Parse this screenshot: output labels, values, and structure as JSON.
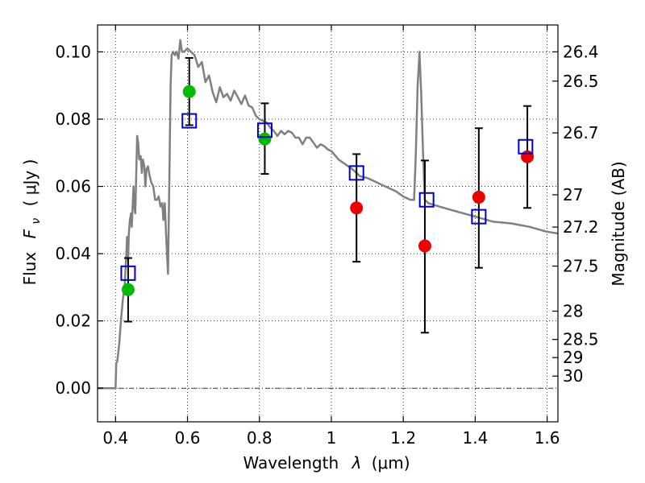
{
  "chart_data": {
    "type": "scatter",
    "title": "",
    "xlabel_text": "Wavelength",
    "xlabel_symbol": "λ",
    "xlabel_unit": "(μm)",
    "ylabel_text": "Flux",
    "ylabel_symbol": "F",
    "ylabel_subscript": "ν",
    "ylabel_unit": "( μJy )",
    "y2label": "Magnitude (AB)",
    "xlim": [
      0.35,
      1.63
    ],
    "ylim": [
      -0.01,
      0.108
    ],
    "grid": true,
    "x_ticks": [
      0.4,
      0.6,
      0.8,
      1.0,
      1.2,
      1.4,
      1.6
    ],
    "x_tick_labels": [
      "0.4",
      "0.6",
      "0.8",
      "1",
      "1.2",
      "1.4",
      "1.6"
    ],
    "y_ticks": [
      0.0,
      0.02,
      0.04,
      0.06,
      0.08,
      0.1
    ],
    "y_tick_labels": [
      "0.00",
      "0.02",
      "0.04",
      "0.06",
      "0.08",
      "0.10"
    ],
    "y2_ticks": [
      {
        "label": "26.4",
        "flux": 0.1
      },
      {
        "label": "26.5",
        "flux": 0.0913
      },
      {
        "label": "26.7",
        "flux": 0.0759
      },
      {
        "label": "27",
        "flux": 0.0575
      },
      {
        "label": "27.2",
        "flux": 0.0479
      },
      {
        "label": "27.5",
        "flux": 0.0363
      },
      {
        "label": "28",
        "flux": 0.0229
      },
      {
        "label": "28.5",
        "flux": 0.0145
      },
      {
        "label": "29",
        "flux": 0.0091
      },
      {
        "label": "30",
        "flux": 0.0036
      }
    ],
    "series": [
      {
        "name": "model_spectrum",
        "kind": "line",
        "color": "#808080",
        "x": [
          0.35,
          0.4,
          0.402,
          0.405,
          0.41,
          0.415,
          0.42,
          0.425,
          0.43,
          0.432,
          0.435,
          0.437,
          0.44,
          0.443,
          0.445,
          0.448,
          0.45,
          0.452,
          0.455,
          0.458,
          0.46,
          0.463,
          0.466,
          0.47,
          0.473,
          0.476,
          0.48,
          0.483,
          0.486,
          0.49,
          0.495,
          0.5,
          0.505,
          0.51,
          0.515,
          0.52,
          0.525,
          0.53,
          0.533,
          0.537,
          0.54,
          0.543,
          0.546,
          0.55,
          0.553,
          0.556,
          0.56,
          0.565,
          0.57,
          0.575,
          0.58,
          0.585,
          0.59,
          0.6,
          0.61,
          0.62,
          0.63,
          0.64,
          0.65,
          0.66,
          0.67,
          0.68,
          0.69,
          0.7,
          0.71,
          0.72,
          0.73,
          0.74,
          0.75,
          0.76,
          0.77,
          0.78,
          0.79,
          0.8,
          0.81,
          0.82,
          0.83,
          0.84,
          0.85,
          0.86,
          0.87,
          0.88,
          0.89,
          0.9,
          0.91,
          0.92,
          0.93,
          0.94,
          0.95,
          0.96,
          0.97,
          0.98,
          0.99,
          1.0,
          1.02,
          1.04,
          1.06,
          1.08,
          1.1,
          1.12,
          1.14,
          1.16,
          1.18,
          1.2,
          1.22,
          1.23,
          1.235,
          1.24,
          1.245,
          1.25,
          1.255,
          1.26,
          1.27,
          1.3,
          1.35,
          1.4,
          1.45,
          1.5,
          1.55,
          1.6,
          1.63
        ],
        "values": [
          0.0,
          0.0,
          0.0075,
          0.008,
          0.013,
          0.02,
          0.026,
          0.03,
          0.04,
          0.045,
          0.038,
          0.046,
          0.05,
          0.052,
          0.048,
          0.055,
          0.06,
          0.054,
          0.052,
          0.066,
          0.075,
          0.073,
          0.068,
          0.069,
          0.064,
          0.068,
          0.066,
          0.06,
          0.065,
          0.066,
          0.063,
          0.061,
          0.06,
          0.056,
          0.056,
          0.057,
          0.054,
          0.055,
          0.05,
          0.055,
          0.047,
          0.04,
          0.034,
          0.065,
          0.09,
          0.099,
          0.1,
          0.099,
          0.1,
          0.098,
          0.1035,
          0.1,
          0.1,
          0.101,
          0.1,
          0.099,
          0.0955,
          0.097,
          0.091,
          0.093,
          0.088,
          0.085,
          0.0895,
          0.0865,
          0.0875,
          0.0855,
          0.0885,
          0.0865,
          0.0845,
          0.087,
          0.084,
          0.0835,
          0.081,
          0.08,
          0.0795,
          0.079,
          0.0775,
          0.0765,
          0.075,
          0.0765,
          0.0755,
          0.0765,
          0.076,
          0.0745,
          0.0745,
          0.0725,
          0.0745,
          0.0745,
          0.073,
          0.0715,
          0.0725,
          0.072,
          0.071,
          0.0705,
          0.068,
          0.0665,
          0.065,
          0.063,
          0.0625,
          0.0615,
          0.0605,
          0.0595,
          0.0585,
          0.057,
          0.056,
          0.056,
          0.07,
          0.09,
          0.1,
          0.087,
          0.07,
          0.056,
          0.055,
          0.054,
          0.0525,
          0.051,
          0.0495,
          0.049,
          0.048,
          0.0465,
          0.046
        ]
      },
      {
        "name": "observed_green",
        "kind": "points",
        "color": "#00bb00",
        "x": [
          0.435,
          0.605,
          0.815
        ],
        "values": [
          0.0293,
          0.0882,
          0.0741
        ],
        "yerr_low": [
          null,
          null,
          null
        ],
        "yerr_high": [
          null,
          null,
          null
        ]
      },
      {
        "name": "observed_red",
        "kind": "points",
        "color": "#ee0000",
        "x": [
          1.07,
          1.26,
          1.41,
          1.545
        ],
        "values": [
          0.0536,
          0.0423,
          0.0568,
          0.0688
        ],
        "yerr_low": [
          null,
          null,
          null,
          null
        ],
        "yerr_high": [
          null,
          null,
          null,
          null
        ]
      },
      {
        "name": "errorbars",
        "kind": "errorbar",
        "color": "#000000",
        "x": [
          0.435,
          0.605,
          0.815,
          1.07,
          1.26,
          1.41,
          1.545
        ],
        "ylow": [
          0.0198,
          0.0782,
          0.0637,
          0.0376,
          0.0165,
          0.0358,
          0.0536
        ],
        "yhigh": [
          0.0387,
          0.0982,
          0.0847,
          0.0696,
          0.0677,
          0.0773,
          0.0839
        ]
      },
      {
        "name": "model_photometry",
        "kind": "squares",
        "color": "#0000cc",
        "x": [
          0.435,
          0.605,
          0.815,
          1.07,
          1.265,
          1.41,
          1.54
        ],
        "values": [
          0.0342,
          0.0795,
          0.0767,
          0.064,
          0.056,
          0.051,
          0.0718
        ]
      }
    ]
  }
}
